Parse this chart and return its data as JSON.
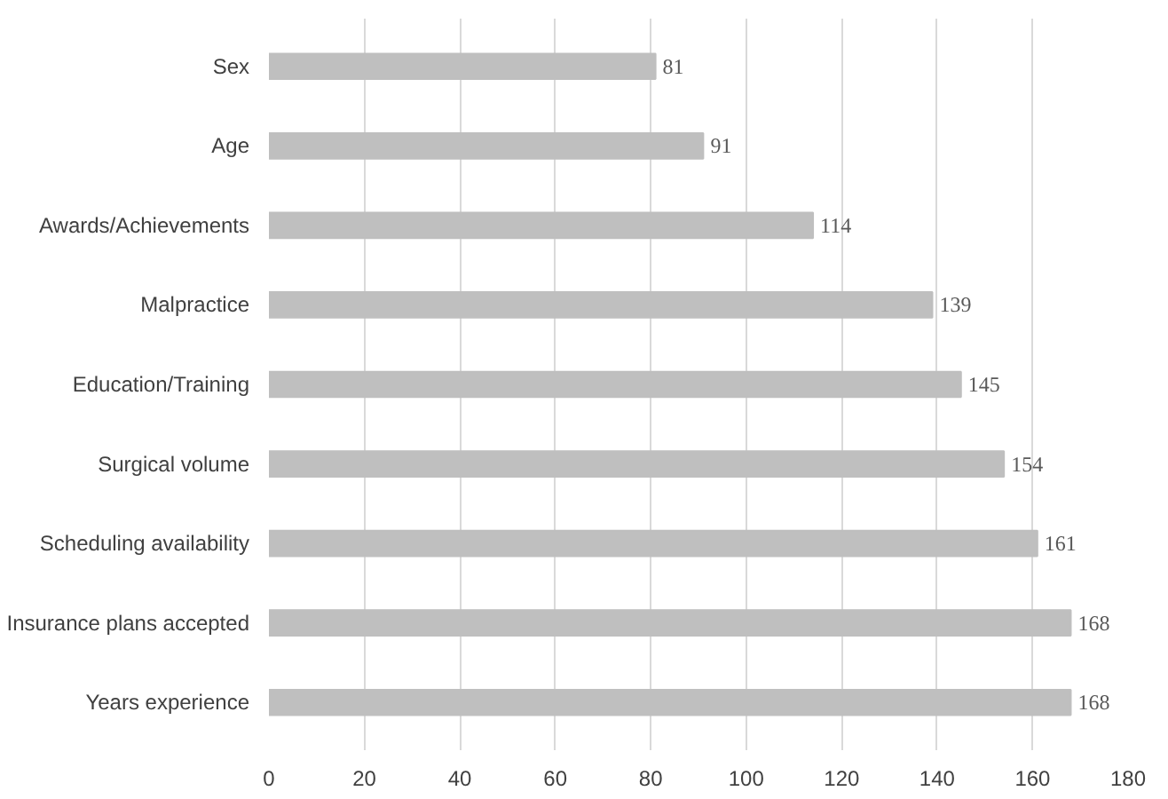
{
  "chart_data": {
    "type": "bar",
    "orientation": "horizontal",
    "categories": [
      "Sex",
      "Age",
      "Awards/Achievements",
      "Malpractice",
      "Education/Training",
      "Surgical volume",
      "Scheduling availability",
      "Insurance plans accepted",
      "Years experience"
    ],
    "values": [
      81,
      91,
      114,
      139,
      145,
      154,
      161,
      168,
      168
    ],
    "color": "#bfbfbf",
    "xlim": [
      0,
      180
    ],
    "xticks": [
      0,
      20,
      40,
      60,
      80,
      100,
      120,
      140,
      160,
      180
    ],
    "grid": "x",
    "data_labels": true
  }
}
